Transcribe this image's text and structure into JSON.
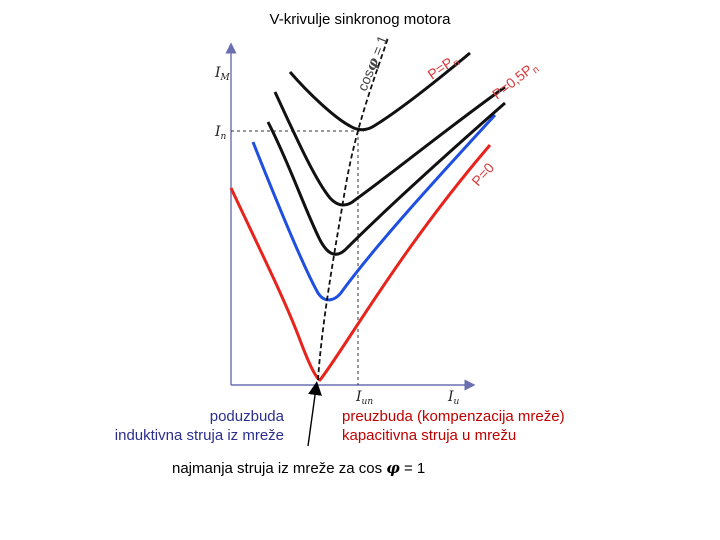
{
  "title": "V-krivulje sinkronog motora",
  "axes": {
    "y_max_label": "I",
    "y_max_sub": "M",
    "y_n_label": "I",
    "y_n_sub": "n",
    "x_n_label": "I",
    "x_n_sub": "un",
    "x_axis_label": "I",
    "x_axis_sub": "u"
  },
  "curve_labels": {
    "cos": "cos",
    "cos_tail": " = 1",
    "p_n": "P=P",
    "p_n_sub": "n",
    "p_half": "P=0,5P",
    "p_half_sub": "n",
    "p_zero": "P=0"
  },
  "captions": {
    "left_line1": "poduzbuda",
    "left_line2": "induktivna struja iz mreže",
    "right_line1": "preuzbuda (kompenzacija mreže)",
    "right_line2": "kapacitivna struja u mrežu",
    "bottom_prefix": "najmanja struja iz mreže za cos ",
    "bottom_suffix": " = 1"
  },
  "colors": {
    "red_curve": "#e8231c",
    "blue_curve": "#1e4fe0",
    "black_curve": "#111111",
    "axis": "#6a6fb0",
    "label": "#d93a3a"
  }
}
